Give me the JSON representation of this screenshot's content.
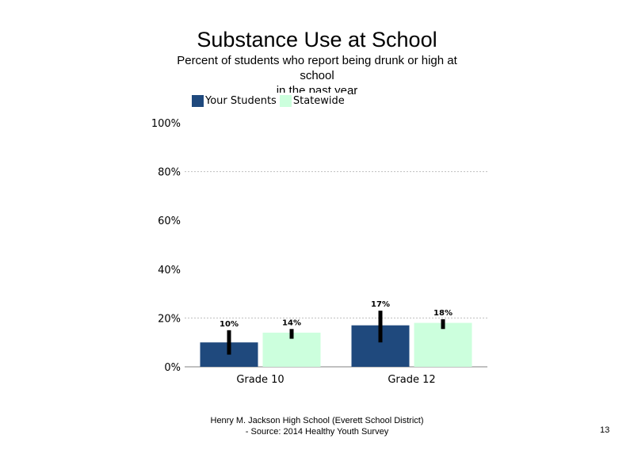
{
  "slide": {
    "title": "Substance Use at School",
    "subtitle_lines": [
      "Percent of students  who report being drunk or high at",
      "school",
      "in the past year"
    ],
    "footer_lines": [
      "Henry M.  Jackson High  School (Everett School District)",
      "- Source: 2014 Healthy  Youth Survey"
    ],
    "page_number": "13"
  },
  "colors": {
    "your_students": "#1f497d",
    "statewide": "#ccffdd",
    "error_bar": "#000000",
    "grid": "#bfbfbf"
  },
  "chart_data": {
    "type": "bar",
    "categories": [
      "Grade 10",
      "Grade 12"
    ],
    "series": [
      {
        "name": "Your Students",
        "values": [
          10,
          17
        ],
        "labels": [
          "10%",
          "17%"
        ],
        "error_low": [
          5,
          10
        ],
        "error_high": [
          15,
          23
        ]
      },
      {
        "name": "Statewide",
        "values": [
          14,
          18
        ],
        "labels": [
          "14%",
          "18%"
        ],
        "error_low": [
          11.5,
          15.5
        ],
        "error_high": [
          15.5,
          19.5
        ]
      }
    ],
    "y_ticks": [
      "0%",
      "20%",
      "40%",
      "60%",
      "80%",
      "100%"
    ],
    "ylim": [
      0,
      100
    ],
    "gridlines": [
      20,
      80
    ],
    "legend_position": "top-left"
  }
}
